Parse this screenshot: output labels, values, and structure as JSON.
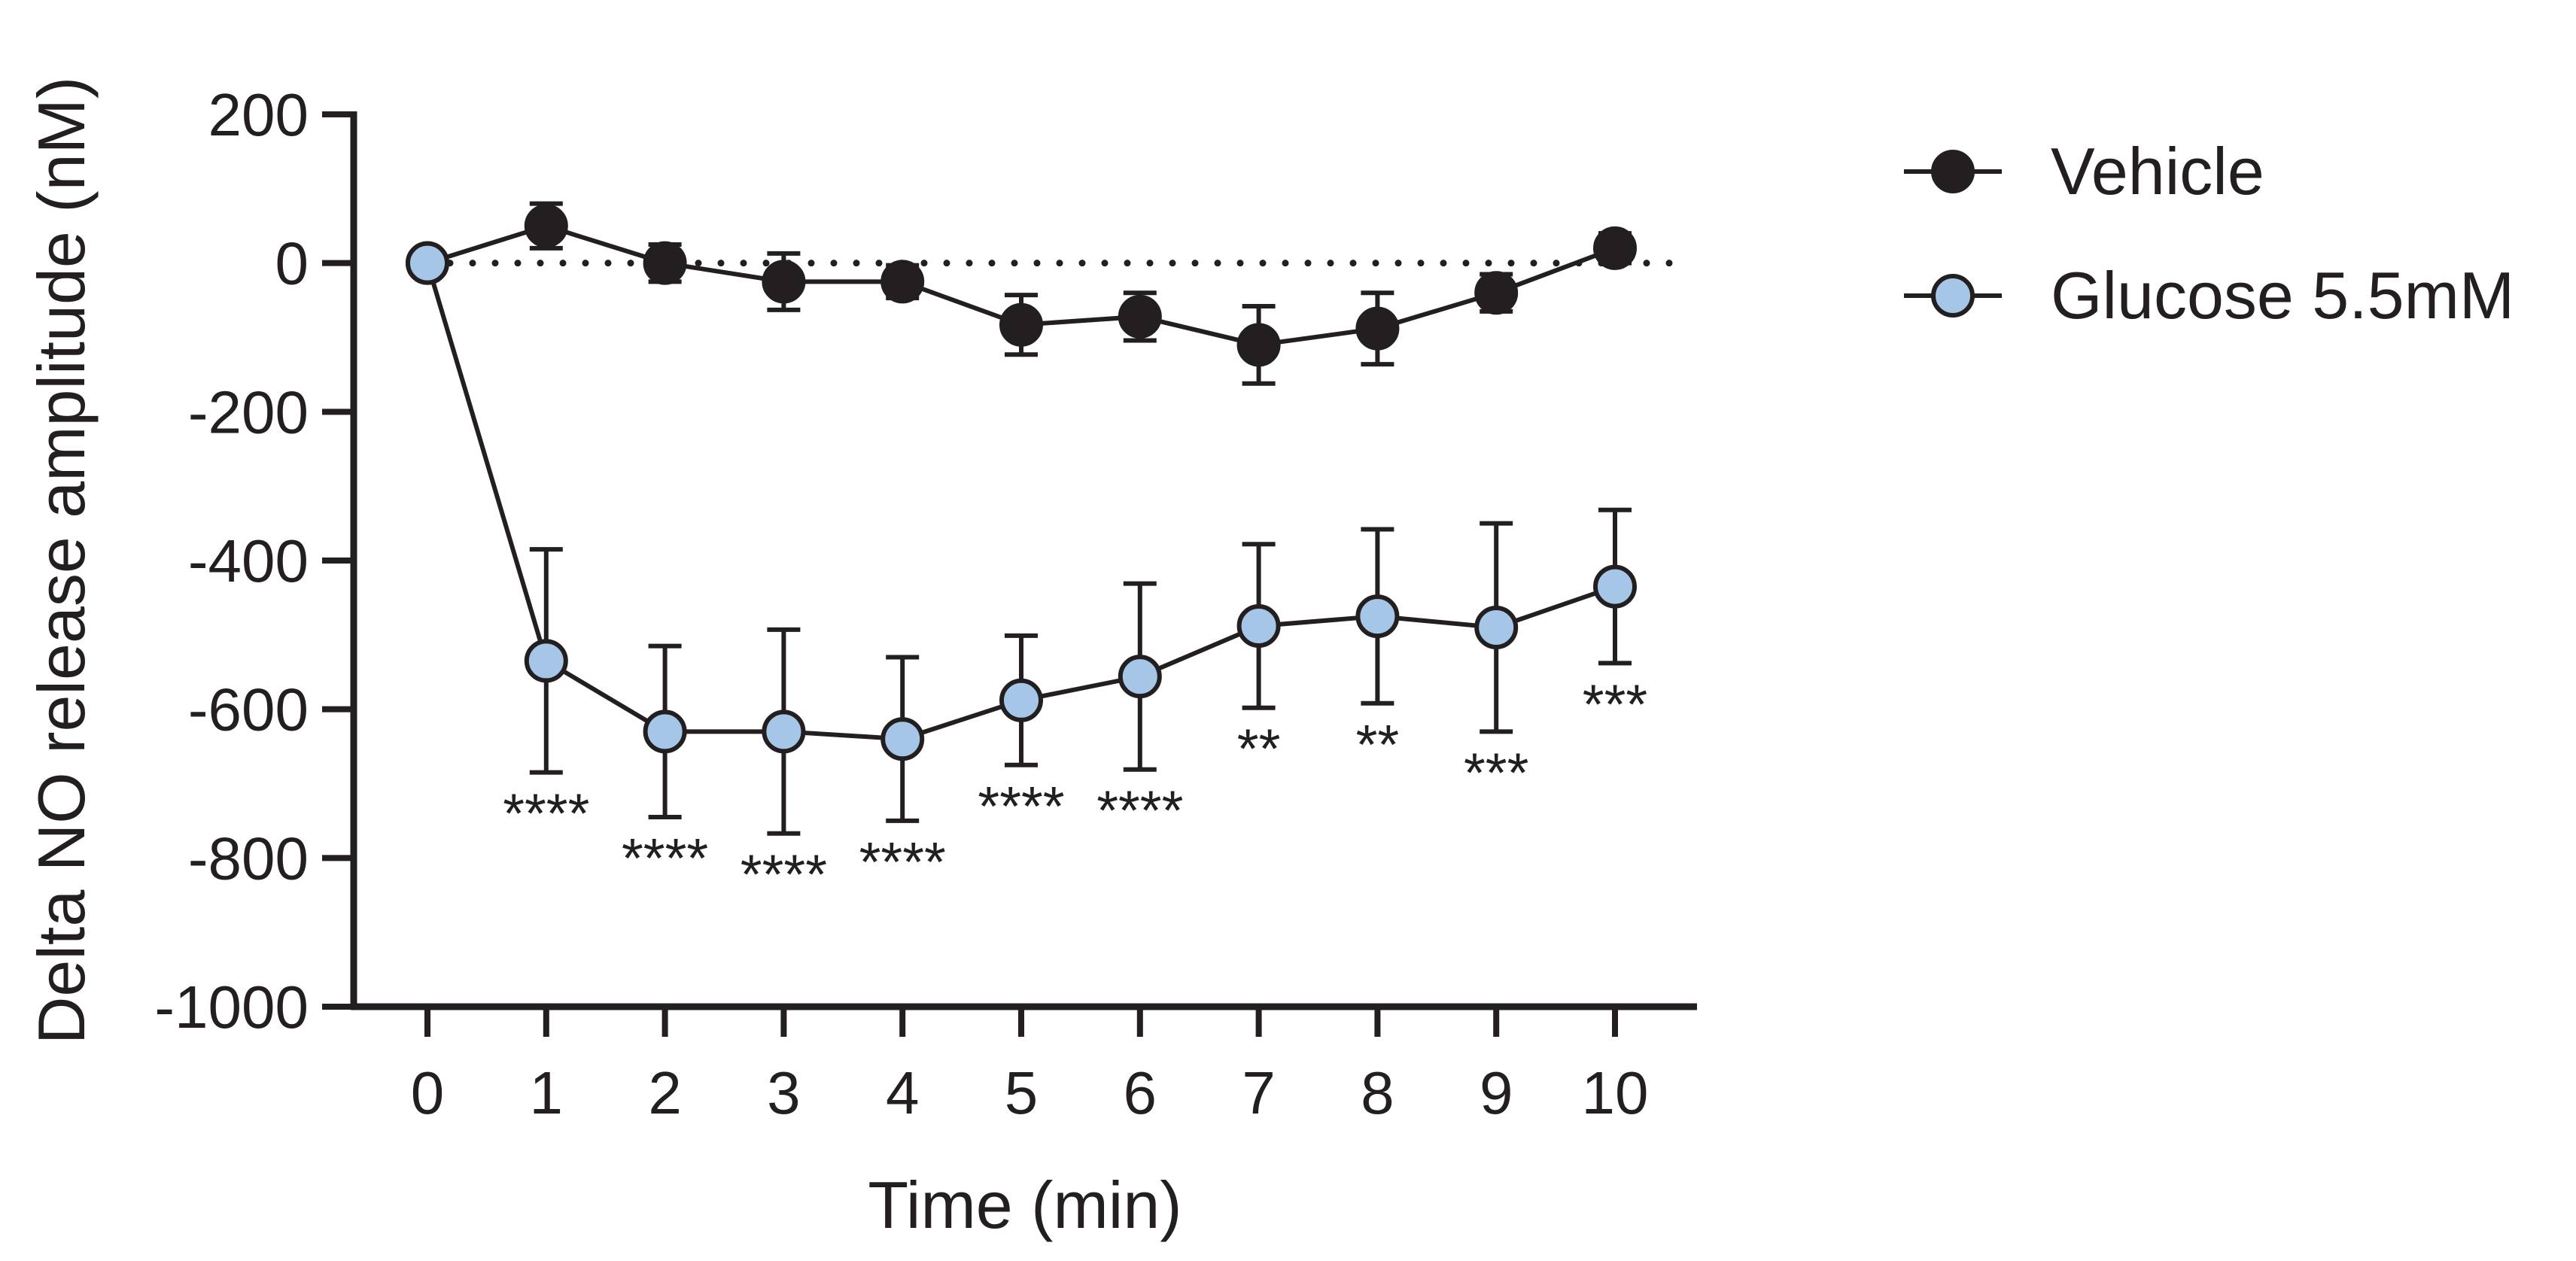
{
  "chart_data": {
    "type": "line",
    "title": "",
    "xlabel": "Time (min)",
    "ylabel": "Delta NO release amplitude (nM)",
    "x": [
      0,
      1,
      2,
      3,
      4,
      5,
      6,
      7,
      8,
      9,
      10
    ],
    "x_tick_labels": [
      "0",
      "1",
      "2",
      "3",
      "4",
      "5",
      "6",
      "7",
      "8",
      "9",
      "10"
    ],
    "ylim": [
      -1000,
      200
    ],
    "y_ticks": [
      200,
      0,
      -200,
      -400,
      -600,
      -800,
      -1000
    ],
    "y_tick_labels": [
      "200",
      "0",
      "-200",
      "-400",
      "-600",
      "-800",
      "-1000"
    ],
    "reference_line": 0,
    "legend_position": "top-right",
    "series": [
      {
        "name": "Vehicle",
        "marker_fill": "#231f20",
        "values": [
          0,
          50,
          0,
          -25,
          -25,
          -83,
          -72,
          -110,
          -88,
          -40,
          20
        ],
        "error": [
          0,
          30,
          25,
          38,
          22,
          40,
          32,
          52,
          48,
          25,
          20
        ]
      },
      {
        "name": "Glucose 5.5mM",
        "marker_fill": "#a6c6e8",
        "values": [
          0,
          -535,
          -630,
          -630,
          -640,
          -588,
          -556,
          -488,
          -475,
          -490,
          -435
        ],
        "error": [
          0,
          150,
          115,
          137,
          110,
          87,
          125,
          110,
          117,
          140,
          103
        ]
      }
    ],
    "significance": [
      "",
      "****",
      "****",
      "****",
      "****",
      "****",
      "****",
      "**",
      "**",
      "***",
      "***"
    ]
  },
  "colors": {
    "axis": "#231f20",
    "vehicle_fill": "#231f20",
    "glucose_fill": "#a6c6e8"
  }
}
